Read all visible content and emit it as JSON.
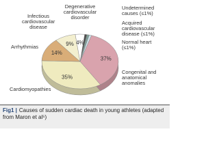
{
  "chart_data": {
    "type": "pie",
    "categories": [
      "Undetermined causes (≤1%)",
      "Acquired cardiovascular disease (≤1%)",
      "Normal heart (≤1%)",
      "Congenital and anatomical anomalies",
      "Cardiomyopathies",
      "Arrhythmias",
      "Infectious cardiovascular disease",
      "Degenerative cardiovascular disorder"
    ],
    "values": [
      1,
      1,
      1,
      37,
      35,
      14,
      9,
      4
    ],
    "value_labels": [
      null,
      null,
      null,
      "37%",
      "35%",
      "14%",
      "9%",
      "4%"
    ],
    "colors": [
      "#4d4d4d",
      "#7f9f98",
      "#cfe2ec",
      "#d9a3ad",
      "#efebbf",
      "#d9ad78",
      "#f3efcf",
      "#ffffff"
    ]
  },
  "caption": {
    "figure": "Fig1 |",
    "text": "Causes of sudden cardiac death in young athletes (adapted from Maron et al⁵)"
  }
}
